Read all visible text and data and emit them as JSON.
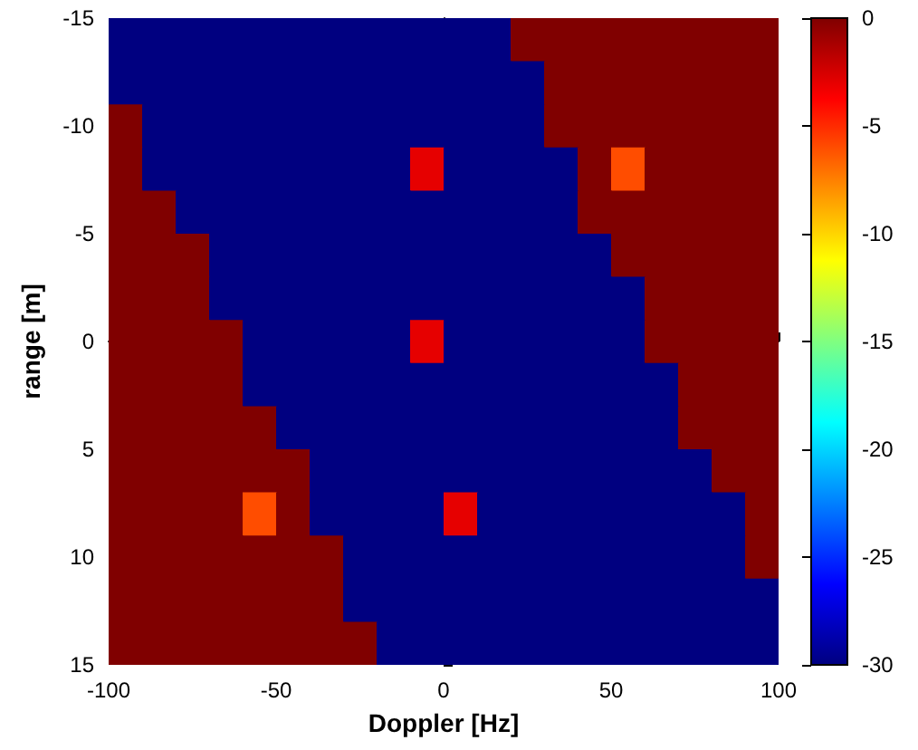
{
  "chart_data": {
    "type": "heatmap",
    "xlabel": "Doppler [Hz]",
    "ylabel": "range [m]",
    "x": [
      -95,
      -85,
      -75,
      -65,
      -55,
      -45,
      -35,
      -25,
      -15,
      -5,
      5,
      15,
      25,
      35,
      45,
      55,
      65,
      75,
      85,
      95
    ],
    "y": [
      -14,
      -12,
      -10,
      -8,
      -6,
      -4,
      -2,
      0,
      2,
      4,
      6,
      8,
      10,
      12,
      14
    ],
    "xlim": [
      -100,
      100
    ],
    "xticks": [
      -100,
      -50,
      0,
      50,
      100
    ],
    "ylim": [
      15,
      -15
    ],
    "yticks": [
      -15,
      -10,
      -5,
      0,
      5,
      10,
      15
    ],
    "clim": [
      -30,
      0
    ],
    "cticks": [
      0,
      -5,
      -10,
      -15,
      -20,
      -25,
      -30
    ],
    "cells": [
      [
        -30,
        -30,
        -30,
        -30,
        -30,
        -30,
        -30,
        -30,
        -30,
        -30,
        -30,
        -30,
        0,
        0,
        0,
        0,
        0,
        0,
        0,
        0
      ],
      [
        -30,
        -30,
        -30,
        -30,
        -30,
        -30,
        -30,
        -30,
        -30,
        -30,
        -30,
        -30,
        -30,
        0,
        0,
        0,
        0,
        0,
        0,
        0
      ],
      [
        0,
        -30,
        -30,
        -30,
        -30,
        -30,
        -30,
        -30,
        -30,
        -30,
        -30,
        -30,
        -30,
        0,
        0,
        0,
        0,
        0,
        0,
        0
      ],
      [
        0,
        -30,
        -30,
        -30,
        -30,
        -30,
        -30,
        -30,
        -30,
        -3,
        -30,
        -30,
        -30,
        -30,
        0,
        -6,
        0,
        0,
        0,
        0
      ],
      [
        0,
        0,
        -30,
        -30,
        -30,
        -30,
        -30,
        -30,
        -30,
        -30,
        -30,
        -30,
        -30,
        -30,
        0,
        0,
        0,
        0,
        0,
        0
      ],
      [
        0,
        0,
        0,
        -30,
        -30,
        -30,
        -30,
        -30,
        -30,
        -30,
        -30,
        -30,
        -30,
        -30,
        -30,
        0,
        0,
        0,
        0,
        0
      ],
      [
        0,
        0,
        0,
        -30,
        -30,
        -30,
        -30,
        -30,
        -30,
        -30,
        -30,
        -30,
        -30,
        -30,
        -30,
        -30,
        0,
        0,
        0,
        0
      ],
      [
        0,
        0,
        0,
        0,
        -30,
        -30,
        -30,
        -30,
        -30,
        -3,
        -30,
        -30,
        -30,
        -30,
        -30,
        -30,
        0,
        0,
        0,
        0
      ],
      [
        0,
        0,
        0,
        0,
        -30,
        -30,
        -30,
        -30,
        -30,
        -30,
        -30,
        -30,
        -30,
        -30,
        -30,
        -30,
        -30,
        0,
        0,
        0
      ],
      [
        0,
        0,
        0,
        0,
        0,
        -30,
        -30,
        -30,
        -30,
        -30,
        -30,
        -30,
        -30,
        -30,
        -30,
        -30,
        -30,
        0,
        0,
        0
      ],
      [
        0,
        0,
        0,
        0,
        0,
        0,
        -30,
        -30,
        -30,
        -30,
        -30,
        -30,
        -30,
        -30,
        -30,
        -30,
        -30,
        -30,
        0,
        0
      ],
      [
        0,
        0,
        0,
        0,
        -6,
        0,
        -30,
        -30,
        -30,
        -30,
        -3,
        -30,
        -30,
        -30,
        -30,
        -30,
        -30,
        -30,
        -30,
        0
      ],
      [
        0,
        0,
        0,
        0,
        0,
        0,
        0,
        -30,
        -30,
        -30,
        -30,
        -30,
        -30,
        -30,
        -30,
        -30,
        -30,
        -30,
        -30,
        0
      ],
      [
        0,
        0,
        0,
        0,
        0,
        0,
        0,
        -30,
        -30,
        -30,
        -30,
        -30,
        -30,
        -30,
        -30,
        -30,
        -30,
        -30,
        -30,
        -30
      ],
      [
        0,
        0,
        0,
        0,
        0,
        0,
        0,
        0,
        -30,
        -30,
        -30,
        -30,
        -30,
        -30,
        -30,
        -30,
        -30,
        -30,
        -30,
        -30
      ]
    ]
  }
}
